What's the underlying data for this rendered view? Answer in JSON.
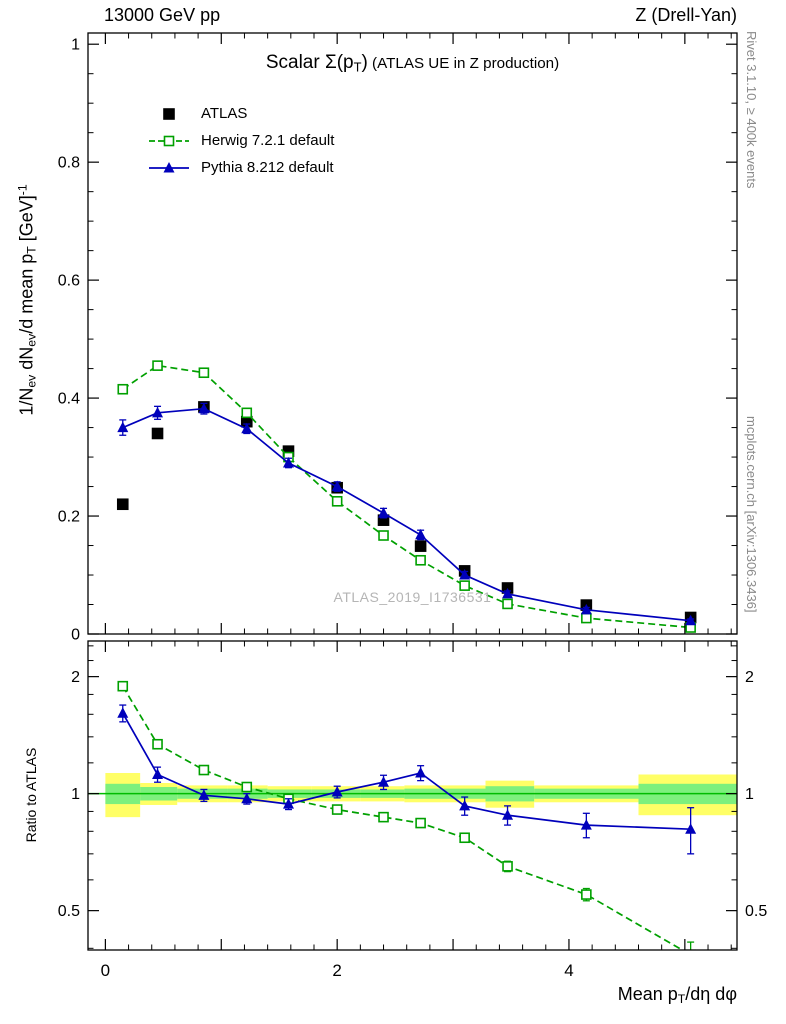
{
  "header": {
    "left": "13000 GeV pp",
    "right": "Z (Drell-Yan)"
  },
  "title_rich": [
    {
      "t": "Scalar Σ(p"
    },
    {
      "t": "T",
      "f": "sub"
    },
    {
      "t": ")"
    },
    {
      "t": " (ATLAS UE in Z production)",
      "f": "small"
    }
  ],
  "axes": {
    "ylabel_main_rich": [
      {
        "t": "1/N"
      },
      {
        "t": "ev",
        "f": "sub"
      },
      {
        "t": " dN"
      },
      {
        "t": "ev",
        "f": "sub"
      },
      {
        "t": "/d mean p"
      },
      {
        "t": "T",
        "f": "sub"
      },
      {
        "t": " [GeV]"
      },
      {
        "t": "-1",
        "f": "sup"
      }
    ],
    "ylabel_ratio": "Ratio to ATLAS",
    "xlabel_rich": [
      {
        "t": "Mean p"
      },
      {
        "t": "T",
        "f": "sub"
      },
      {
        "t": "/dη dφ"
      }
    ]
  },
  "side_notes": {
    "top_right": "Rivet 3.1.10, ≥ 400k events",
    "bottom_right": "mcplots.cern.ch [arXiv:1306.3436]"
  },
  "watermark": "ATLAS_2019_I1736531",
  "colors": {
    "atlas": "#000000",
    "herwig": "#00a000",
    "pythia": "#0000bb",
    "band_yellow": "#ffff66",
    "band_green": "#7df07d",
    "ref_line": "#00bb00"
  },
  "chart_data": [
    {
      "type": "line",
      "panel": "main",
      "title": "Scalar Σ(pT) (ATLAS UE in Z production)",
      "xlabel": "Mean pT/dη dφ",
      "ylabel": "1/Nev dNev/d mean pT [GeV]^-1",
      "xlim": [
        -0.15,
        5.45
      ],
      "ylim": [
        0,
        1.019
      ],
      "grid": false,
      "legend_position": "top-left-inside",
      "yticks_major": [
        0,
        0.2,
        0.4,
        0.6,
        0.8,
        1
      ],
      "ytick_labels": [
        "0",
        "0.2",
        "0.4",
        "0.6",
        "0.8",
        "1"
      ],
      "xticks_labeled": [
        0,
        2,
        4
      ],
      "x": [
        0.15,
        0.45,
        0.85,
        1.22,
        1.58,
        2.0,
        2.4,
        2.72,
        3.1,
        3.47,
        4.15,
        5.05
      ],
      "series": [
        {
          "name": "ATLAS",
          "color": "#000000",
          "marker": "square",
          "fill": true,
          "line": "none",
          "values": [
            0.22,
            0.34,
            0.385,
            0.36,
            0.31,
            0.248,
            0.193,
            0.149,
            0.107,
            0.078,
            0.049,
            0.028
          ],
          "errors": [
            0.008,
            0.008,
            0.008,
            0.007,
            0.007,
            0.006,
            0.006,
            0.005,
            0.004,
            0.004,
            0.003,
            0.003
          ]
        },
        {
          "name": "Herwig 7.2.1 default",
          "color": "#00a000",
          "marker": "square",
          "fill": false,
          "line": "dashed",
          "values": [
            0.415,
            0.455,
            0.443,
            0.375,
            0.3,
            0.225,
            0.167,
            0.125,
            0.082,
            0.051,
            0.027,
            0.011
          ],
          "errors": [
            0.006,
            0.005,
            0.005,
            0.004,
            0.004,
            0.003,
            0.003,
            0.003,
            0.002,
            0.002,
            0.001,
            0.001
          ]
        },
        {
          "name": "Pythia 8.212 default",
          "color": "#0000bb",
          "marker": "triangle",
          "fill": true,
          "line": "solid",
          "values": [
            0.35,
            0.375,
            0.382,
            0.348,
            0.29,
            0.25,
            0.205,
            0.168,
            0.1,
            0.068,
            0.041,
            0.0225
          ],
          "errors": [
            0.013,
            0.011,
            0.009,
            0.008,
            0.008,
            0.008,
            0.008,
            0.008,
            0.006,
            0.005,
            0.004,
            0.003
          ]
        }
      ]
    },
    {
      "type": "line",
      "panel": "ratio",
      "ylabel": "Ratio to ATLAS",
      "yscale": "log",
      "xlim": [
        -0.15,
        5.45
      ],
      "ylim": [
        0.396,
        2.47
      ],
      "yticks_major": [
        0.5,
        1,
        2
      ],
      "ytick_labels": [
        "0.5",
        "1",
        "2"
      ],
      "yticks_minor": [
        0.4,
        0.6,
        0.7,
        0.8,
        0.9,
        1.2,
        1.4,
        1.6,
        1.8,
        2.2,
        2.4
      ],
      "xticks_labeled": [
        0,
        2,
        4
      ],
      "reference_line": 1,
      "bin_edges": [
        0,
        0.3,
        0.62,
        1.05,
        1.4,
        1.78,
        2.2,
        2.58,
        2.9,
        3.28,
        3.7,
        4.6,
        5.45
      ],
      "bands": {
        "yellow_halfwidth": [
          0.13,
          0.065,
          0.05,
          0.05,
          0.045,
          0.045,
          0.045,
          0.05,
          0.05,
          0.08,
          0.05,
          0.12
        ],
        "green_halfwidth": [
          0.06,
          0.04,
          0.03,
          0.03,
          0.025,
          0.025,
          0.025,
          0.03,
          0.03,
          0.045,
          0.03,
          0.06
        ]
      },
      "x": [
        0.15,
        0.45,
        0.85,
        1.22,
        1.58,
        2.0,
        2.4,
        2.72,
        3.1,
        3.47,
        4.15,
        5.05
      ],
      "series": [
        {
          "name": "Herwig 7.2.1 default",
          "color": "#00a000",
          "marker": "square",
          "fill": false,
          "line": "dashed",
          "values": [
            1.89,
            1.34,
            1.15,
            1.04,
            0.97,
            0.91,
            0.87,
            0.84,
            0.77,
            0.65,
            0.55,
            0.385
          ],
          "errors": [
            0.03,
            0.02,
            0.015,
            0.012,
            0.012,
            0.012,
            0.015,
            0.018,
            0.02,
            0.02,
            0.02,
            0.03
          ]
        },
        {
          "name": "Pythia 8.212 default",
          "color": "#0000bb",
          "marker": "triangle",
          "fill": true,
          "line": "solid",
          "values": [
            1.61,
            1.12,
            0.99,
            0.97,
            0.94,
            1.01,
            1.07,
            1.13,
            0.93,
            0.88,
            0.83,
            0.81
          ],
          "errors": [
            0.08,
            0.05,
            0.035,
            0.03,
            0.03,
            0.035,
            0.045,
            0.05,
            0.05,
            0.05,
            0.06,
            0.11
          ]
        }
      ]
    }
  ]
}
